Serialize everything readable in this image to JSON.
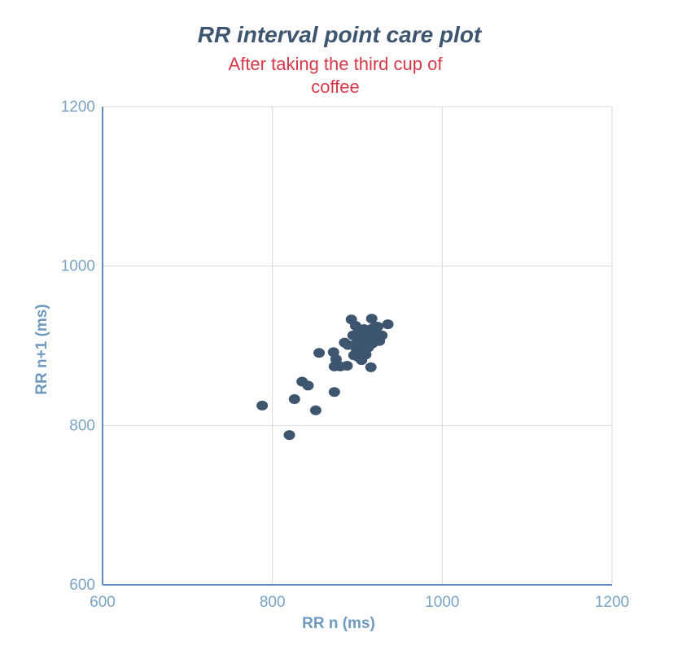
{
  "chart_data": {
    "type": "scatter",
    "title": "RR interval point care plot",
    "subtitle_lines": [
      "After taking the third cup of",
      "coffee"
    ],
    "xlabel": "RR n (ms)",
    "ylabel": "RR n+1 (ms)",
    "xlim": [
      600,
      1200
    ],
    "ylim": [
      600,
      1200
    ],
    "x_ticks": [
      600,
      800,
      1000,
      1200
    ],
    "y_ticks": [
      600,
      800,
      1000,
      1200
    ],
    "x_tick_labels": [
      "600",
      "800",
      "1000",
      "1200"
    ],
    "y_tick_labels": [
      "600",
      "800",
      "1000",
      "1200"
    ],
    "grid": true,
    "marker_color": "#3e5570",
    "points": [
      [
        788,
        825
      ],
      [
        820,
        788
      ],
      [
        826,
        833
      ],
      [
        835,
        855
      ],
      [
        842,
        850
      ],
      [
        851,
        819
      ],
      [
        855,
        891
      ],
      [
        873,
        842
      ],
      [
        872,
        892
      ],
      [
        873,
        874
      ],
      [
        875,
        883
      ],
      [
        880,
        874
      ],
      [
        885,
        904
      ],
      [
        888,
        875
      ],
      [
        889,
        901
      ],
      [
        893,
        933
      ],
      [
        895,
        913
      ],
      [
        896,
        888
      ],
      [
        898,
        925
      ],
      [
        899,
        896
      ],
      [
        900,
        905
      ],
      [
        901,
        886
      ],
      [
        902,
        918
      ],
      [
        903,
        893
      ],
      [
        905,
        910
      ],
      [
        905,
        882
      ],
      [
        907,
        899
      ],
      [
        908,
        921
      ],
      [
        910,
        889
      ],
      [
        911,
        907
      ],
      [
        913,
        898
      ],
      [
        914,
        914
      ],
      [
        916,
        873
      ],
      [
        917,
        934
      ],
      [
        918,
        922
      ],
      [
        918,
        903
      ],
      [
        920,
        916
      ],
      [
        922,
        911
      ],
      [
        924,
        924
      ],
      [
        926,
        906
      ],
      [
        929,
        913
      ],
      [
        936,
        927
      ]
    ]
  }
}
